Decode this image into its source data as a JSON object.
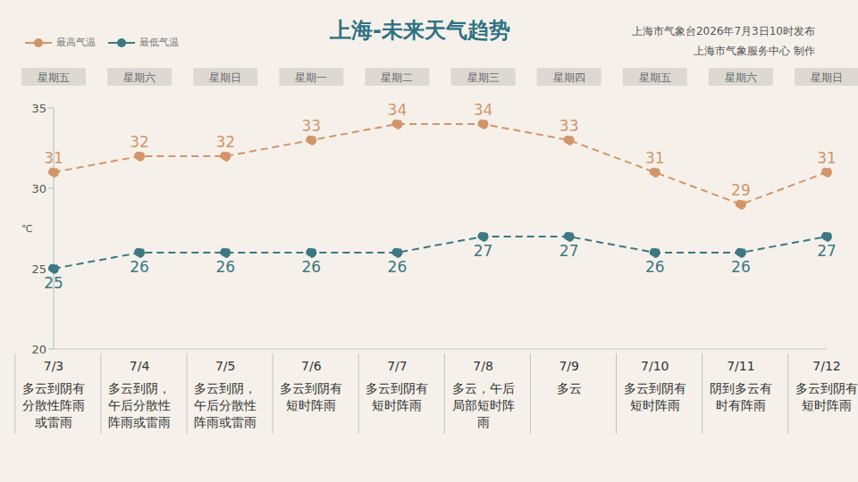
{
  "chart_data": {
    "type": "line",
    "title": "上海-未来天气趋势",
    "annotations": [
      "上海市气象台2026年7月3日10时发布",
      "上海市气象服务中心 制作"
    ],
    "y_label": "℃",
    "categories": [
      "7/3",
      "7/4",
      "7/5",
      "7/6",
      "7/7",
      "7/8",
      "7/9",
      "7/10",
      "7/11",
      "7/12"
    ],
    "weekdays": [
      "星期五",
      "星期六",
      "星期日",
      "星期一",
      "星期二",
      "星期三",
      "星期四",
      "星期五",
      "星期六",
      "星期日"
    ],
    "descriptions": [
      "多云到阴有分散性阵雨或雷雨",
      "多云到阴，午后分散性阵雨或雷雨",
      "多云到阴，午后分散性阵雨或雷雨",
      "多云到阴有短时阵雨",
      "多云到阴有短时阵雨",
      "多云，午后局部短时阵雨",
      "多云",
      "多云到阴有短时阵雨",
      "阴到多云有时有阵雨",
      "多云到阴有短时阵雨"
    ],
    "series": [
      {
        "name": "最高气温",
        "color": "#d4946a",
        "values": [
          31,
          32,
          32,
          33,
          34,
          34,
          33,
          31,
          29,
          31
        ],
        "marker": "circle",
        "line_style": "dashed"
      },
      {
        "name": "最低气温",
        "color": "#3b7882",
        "values": [
          25,
          26,
          26,
          26,
          26,
          27,
          27,
          26,
          26,
          27
        ],
        "marker": "circle",
        "line_style": "dashed"
      }
    ],
    "ylim": [
      20,
      35
    ],
    "yticks": [
      20,
      25,
      30,
      35
    ],
    "grid": false,
    "legend": "top-left",
    "data_labels": true
  }
}
